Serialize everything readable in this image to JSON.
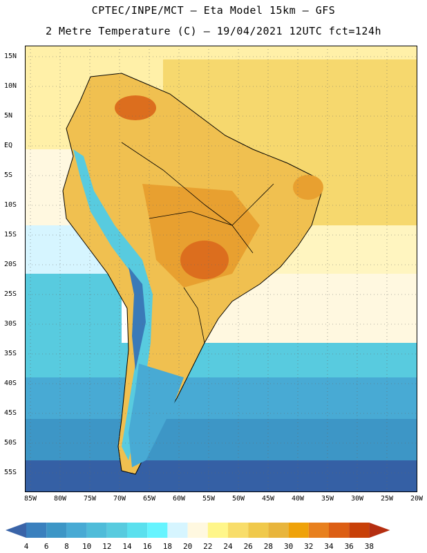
{
  "header": {
    "line1": "CPTEC/INPE/MCT –  Eta Model 15km – GFS",
    "line2": "2 Metre Temperature (C) – 19/04/2021 12UTC fct=124h"
  },
  "lat_labels": [
    "15N",
    "10N",
    "5N",
    "EQ",
    "5S",
    "10S",
    "15S",
    "20S",
    "25S",
    "30S",
    "35S",
    "40S",
    "45S",
    "50S",
    "55S"
  ],
  "lon_labels": [
    "85W",
    "80W",
    "75W",
    "70W",
    "65W",
    "60W",
    "55W",
    "50W",
    "45W",
    "40W",
    "35W",
    "30W",
    "25W",
    "20W"
  ],
  "colorbar": {
    "values": [
      4,
      6,
      8,
      10,
      12,
      14,
      16,
      18,
      20,
      22,
      24,
      26,
      28,
      30,
      32,
      34,
      36,
      38
    ],
    "colors": [
      "#3a64a8",
      "#3a80be",
      "#3d96c6",
      "#48aad4",
      "#4fbcd9",
      "#58cbdf",
      "#5be0ee",
      "#66f4ff",
      "#d6f5ff",
      "#fff8e0",
      "#fff68a",
      "#f8dd6a",
      "#f0c94b",
      "#e8b53c",
      "#efa20a",
      "#e8801e",
      "#dc5e14",
      "#c84008",
      "#b52e10"
    ]
  },
  "map": {
    "ocean_colors": {
      "tropical": "#fff0a8",
      "warm": "#f5d56a",
      "sub": "#fff8e0",
      "cool": "#d6f5ff",
      "cold1": "#58cbdf",
      "cold2": "#3d96c6",
      "cold3": "#3560a5"
    },
    "land_colors": {
      "hot": "#e8a030",
      "hotter": "#dc6e1e",
      "warm": "#f0c050",
      "andes1": "#66f4ff",
      "andes2": "#48aad4",
      "andes3": "#3a7ab8"
    }
  }
}
